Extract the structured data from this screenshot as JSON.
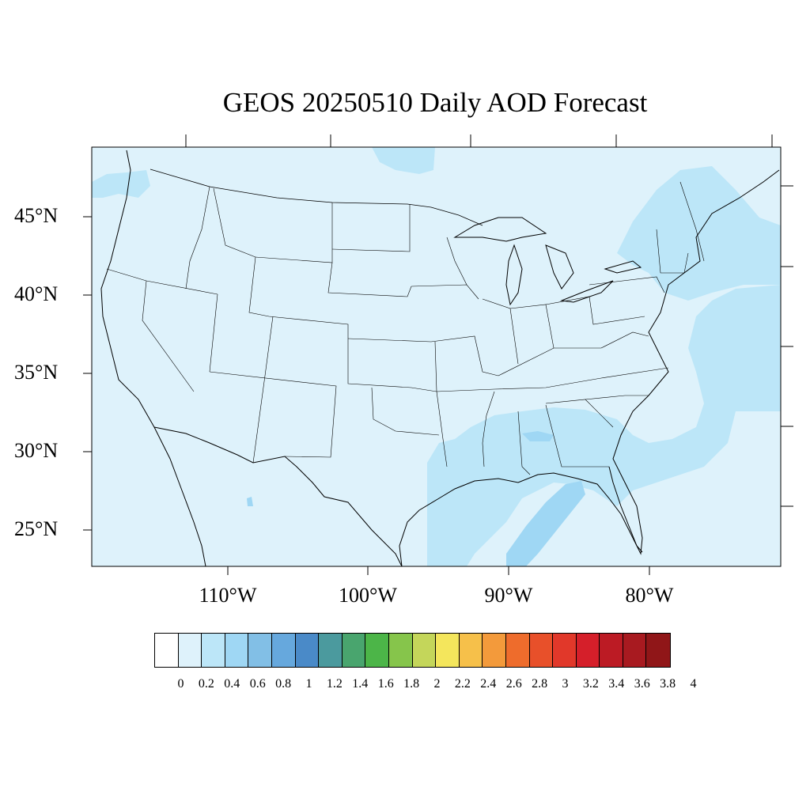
{
  "title": "GEOS 20250510 Daily AOD Forecast",
  "lat_labels": [
    "45°N",
    "40°N",
    "35°N",
    "30°N",
    "25°N"
  ],
  "lon_labels": [
    "110°W",
    "100°W",
    "90°W",
    "80°W"
  ],
  "colorbar": {
    "labels": [
      "0",
      "0.2",
      "0.4",
      "0.6",
      "0.8",
      "1",
      "1.2",
      "1.4",
      "1.6",
      "1.8",
      "2",
      "2.2",
      "2.4",
      "2.6",
      "2.8",
      "3",
      "3.2",
      "3.4",
      "3.6",
      "3.8",
      "4"
    ],
    "colors": [
      "#ffffff",
      "#def2fb",
      "#bce6f8",
      "#9fd7f4",
      "#82bfe6",
      "#66a8dd",
      "#4a8ac8",
      "#4b9a9e",
      "#49a56e",
      "#4cb548",
      "#86c54b",
      "#c4d65a",
      "#f4e65c",
      "#f6c04a",
      "#f39a3b",
      "#ee6c2c",
      "#e8502a",
      "#e1382a",
      "#d51f2a",
      "#bc1b24",
      "#a81a20",
      "#901618"
    ]
  },
  "colors": {
    "background_aod": "#def2fb",
    "aod_0_4": "#bce6f8",
    "aod_0_6": "#9fd7f4"
  }
}
